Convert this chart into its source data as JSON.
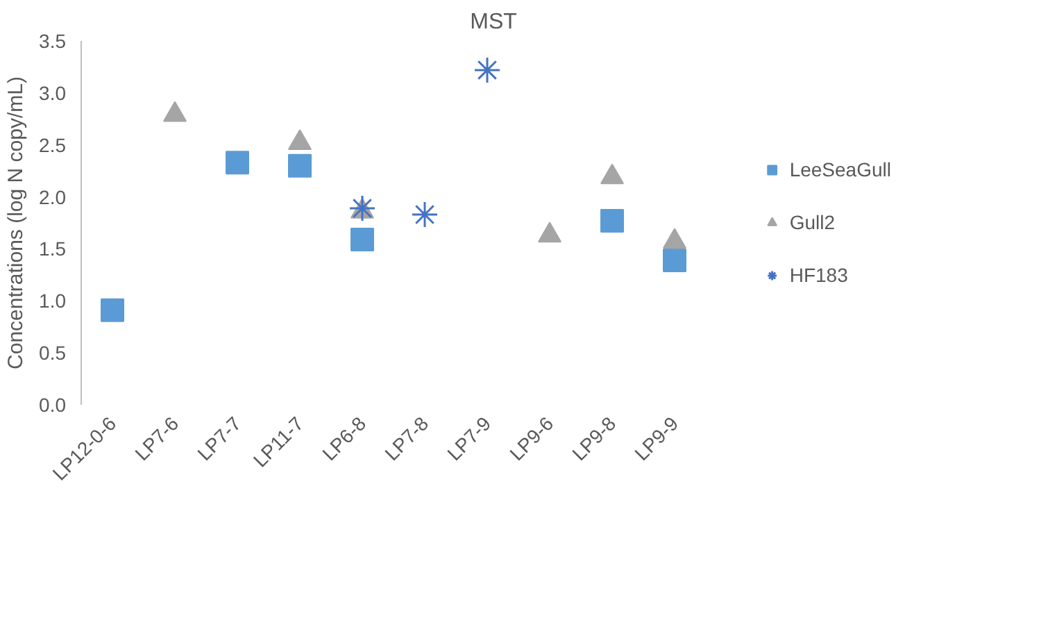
{
  "chart_data": {
    "type": "scatter",
    "title": "MST",
    "ylabel": "Concentrations (log N copy/mL)",
    "categories": [
      "LP12-0-6",
      "LP7-6",
      "LP7-7",
      "LP11-7",
      "LP6-8",
      "LP7-8",
      "LP7-9",
      "LP9-6",
      "LP9-8",
      "LP9-9"
    ],
    "ylim": [
      0,
      3.5
    ],
    "yticks": [
      "0.0",
      0.5,
      "1.0",
      1.5,
      "2.0",
      2.5,
      "3.0",
      3.5
    ],
    "grid": false,
    "legend": "right",
    "series": [
      {
        "name": "LeeSeaGull",
        "color": "#5b9bd5",
        "marker": "square",
        "values": [
          0.91,
          null,
          2.33,
          2.3,
          1.59,
          null,
          null,
          null,
          1.77,
          1.39
        ]
      },
      {
        "name": "Gull2",
        "color": "#a5a5a5",
        "marker": "triangle",
        "values": [
          null,
          2.79,
          null,
          2.52,
          1.86,
          null,
          null,
          1.63,
          2.19,
          1.57
        ]
      },
      {
        "name": "HF183",
        "color": "#4472c4",
        "marker": "cross",
        "values": [
          null,
          null,
          null,
          null,
          1.89,
          1.83,
          3.22,
          null,
          null,
          null
        ]
      }
    ]
  }
}
